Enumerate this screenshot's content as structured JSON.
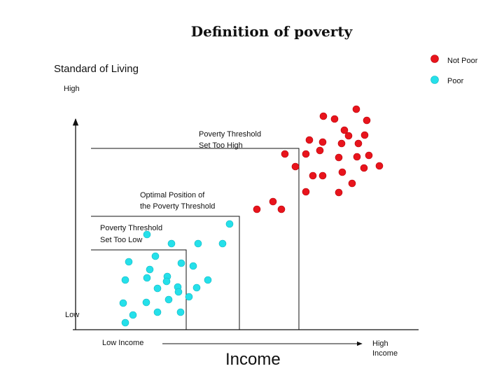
{
  "title": "Definition of poverty",
  "y_axis": {
    "label": "Standard of Living",
    "top_label": "High",
    "bottom_label": "Low"
  },
  "x_axis": {
    "label": "Income",
    "left_label": "Low  Income",
    "right_label_1": "High",
    "right_label_2": "Income"
  },
  "legend": {
    "items": [
      {
        "label": "Not Poor",
        "color": "#e8141c"
      },
      {
        "label": "Poor",
        "color": "#25e0ea"
      }
    ]
  },
  "thresholds": {
    "too_high": {
      "line1": "Poverty Threshold",
      "line2": "Set Too High"
    },
    "optimal": {
      "line1": "Optimal Position of",
      "line2": "the Poverty Threshold"
    },
    "too_low": {
      "line1": "Poverty Threshold",
      "line2": "Set Too Low"
    }
  }
}
